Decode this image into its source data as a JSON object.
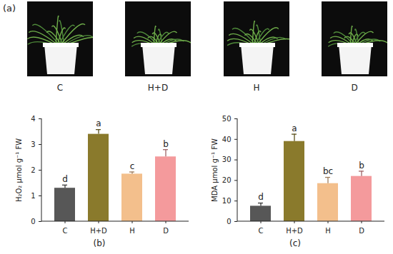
{
  "photos": {
    "panel_label": "(a)",
    "labels": [
      "C",
      "H+D",
      "H",
      "D"
    ]
  },
  "chart_data": [
    {
      "type": "bar",
      "panel_label": "(b)",
      "categories": [
        "C",
        "H+D",
        "H",
        "D"
      ],
      "values": [
        1.3,
        3.4,
        1.85,
        2.52
      ],
      "errors": [
        0.12,
        0.18,
        0.08,
        0.28
      ],
      "letters": [
        "d",
        "a",
        "c",
        "b"
      ],
      "colors": [
        "#575757",
        "#8a7a2c",
        "#f3bf8c",
        "#f49a9c"
      ],
      "y_label": "H₂O₂ μmol g⁻¹ FW",
      "ylim": [
        0,
        4
      ],
      "yticks": [
        0,
        1,
        2,
        3,
        4
      ],
      "grid": false
    },
    {
      "type": "bar",
      "panel_label": "(c)",
      "categories": [
        "C",
        "H+D",
        "H",
        "D"
      ],
      "values": [
        7.5,
        39,
        18.5,
        22
      ],
      "errors": [
        1.5,
        3.5,
        3,
        2.5
      ],
      "letters": [
        "d",
        "a",
        "bc",
        "b"
      ],
      "colors": [
        "#575757",
        "#8a7a2c",
        "#f3bf8c",
        "#f49a9c"
      ],
      "y_label": "MDA μmol g⁻¹ FW",
      "ylim": [
        0,
        50
      ],
      "yticks": [
        0,
        10,
        20,
        30,
        40,
        50
      ],
      "grid": false
    }
  ]
}
